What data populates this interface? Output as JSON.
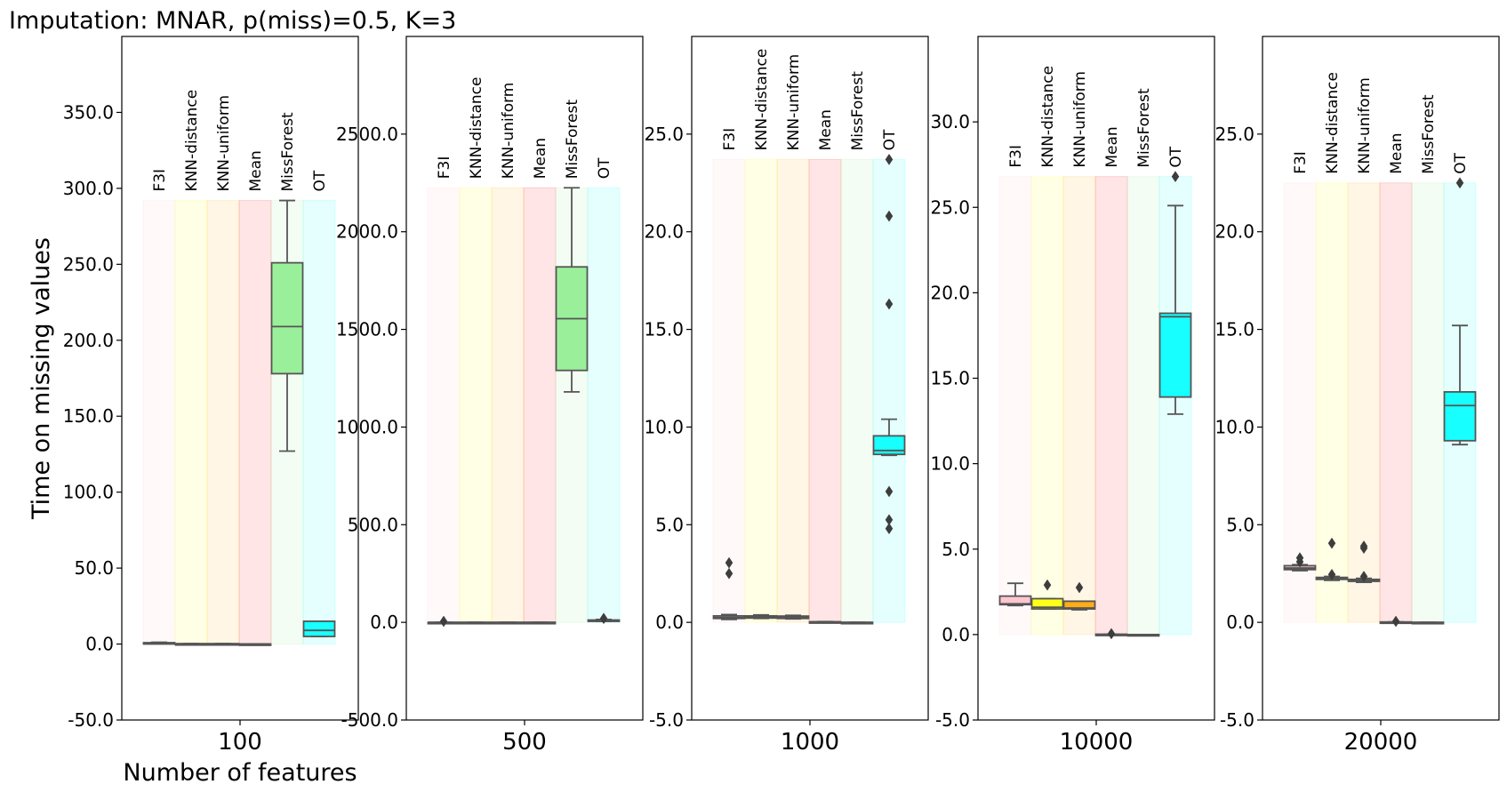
{
  "chart_data": {
    "type": "box",
    "title": "Imputation: MNAR, p(miss)=0.5, K=3",
    "xlabel": "Number of features",
    "ylabel": "Time on missing values",
    "methods": [
      "F3I",
      "KNN-distance",
      "KNN-uniform",
      "Mean",
      "MissForest",
      "OT"
    ],
    "method_colors": {
      "F3I": "#ffc0cb",
      "KNN-distance": "#ffff00",
      "KNN-uniform": "#ffa500",
      "Mean": "#ff0000",
      "MissForest": "#90ee90",
      "OT": "#00ffff"
    },
    "panels": [
      {
        "category": "100",
        "ylim": [
          -50,
          400
        ],
        "yticks": [
          -50,
          0,
          50,
          100,
          150,
          200,
          250,
          300,
          350
        ],
        "ytick_labels": [
          "-50.0",
          "0.0",
          "50.0",
          "100.0",
          "150.0",
          "200.0",
          "250.0",
          "300.0",
          "350.0"
        ],
        "band_top": 292,
        "boxes": [
          {
            "method": "F3I",
            "whislo": 0.3,
            "q1": 0.4,
            "med": 0.5,
            "q3": 0.9,
            "whishi": 1.2,
            "fliers": []
          },
          {
            "method": "KNN-distance",
            "whislo": 0.1,
            "q1": 0.15,
            "med": 0.2,
            "q3": 0.25,
            "whishi": 0.3,
            "fliers": []
          },
          {
            "method": "KNN-uniform",
            "whislo": 0.1,
            "q1": 0.15,
            "med": 0.2,
            "q3": 0.25,
            "whishi": 0.3,
            "fliers": []
          },
          {
            "method": "Mean",
            "whislo": 0.0,
            "q1": 0.0,
            "med": 0.0,
            "q3": 0.05,
            "whishi": 0.05,
            "fliers": []
          },
          {
            "method": "MissForest",
            "whislo": 127,
            "q1": 178,
            "med": 209,
            "q3": 251,
            "whishi": 292,
            "fliers": []
          },
          {
            "method": "OT",
            "whislo": 5,
            "q1": 5,
            "med": 9,
            "q3": 15,
            "whishi": 15,
            "fliers": []
          }
        ]
      },
      {
        "category": "500",
        "ylim": [
          -500,
          3000
        ],
        "yticks": [
          -500,
          0,
          500,
          1000,
          1500,
          2000,
          2500
        ],
        "ytick_labels": [
          "-500.0",
          "0.0",
          "500.0",
          "1000.0",
          "1500.0",
          "2000.0",
          "2500.0"
        ],
        "band_top": 2225,
        "boxes": [
          {
            "method": "F3I",
            "whislo": 0,
            "q1": 0,
            "med": 0,
            "q3": 0,
            "whishi": 0,
            "fliers": [
              5
            ]
          },
          {
            "method": "KNN-distance",
            "whislo": 0,
            "q1": 0,
            "med": 0,
            "q3": 0,
            "whishi": 0,
            "fliers": []
          },
          {
            "method": "KNN-uniform",
            "whislo": 0,
            "q1": 0,
            "med": 0,
            "q3": 0,
            "whishi": 0,
            "fliers": []
          },
          {
            "method": "Mean",
            "whislo": 0,
            "q1": 0,
            "med": 0,
            "q3": 0,
            "whishi": 0,
            "fliers": []
          },
          {
            "method": "MissForest",
            "whislo": 1180,
            "q1": 1290,
            "med": 1555,
            "q3": 1820,
            "whishi": 2225,
            "fliers": []
          },
          {
            "method": "OT",
            "whislo": 5,
            "q1": 5,
            "med": 8,
            "q3": 12,
            "whishi": 15,
            "fliers": [
              20
            ]
          }
        ]
      },
      {
        "category": "1000",
        "ylim": [
          -5,
          30
        ],
        "yticks": [
          -5,
          0,
          5,
          10,
          15,
          20,
          25
        ],
        "ytick_labels": [
          "-5.0",
          "0.0",
          "5.0",
          "10.0",
          "15.0",
          "20.0",
          "25.0"
        ],
        "band_top": 23.7,
        "boxes": [
          {
            "method": "F3I",
            "whislo": 0.15,
            "q1": 0.2,
            "med": 0.25,
            "q3": 0.33,
            "whishi": 0.4,
            "fliers": [
              2.5,
              3.05
            ]
          },
          {
            "method": "KNN-distance",
            "whislo": 0.2,
            "q1": 0.22,
            "med": 0.28,
            "q3": 0.33,
            "whishi": 0.38,
            "fliers": []
          },
          {
            "method": "KNN-uniform",
            "whislo": 0.18,
            "q1": 0.2,
            "med": 0.25,
            "q3": 0.32,
            "whishi": 0.36,
            "fliers": []
          },
          {
            "method": "Mean",
            "whislo": 0.0,
            "q1": 0.01,
            "med": 0.02,
            "q3": 0.03,
            "whishi": 0.04,
            "fliers": []
          },
          {
            "method": "MissForest",
            "whislo": 0,
            "q1": 0,
            "med": 0,
            "q3": 0,
            "whishi": 0,
            "fliers": []
          },
          {
            "method": "OT",
            "whislo": 8.55,
            "q1": 8.6,
            "med": 8.8,
            "q3": 9.55,
            "whishi": 10.4,
            "fliers": [
              4.8,
              5.25,
              6.7,
              16.3,
              20.8,
              23.7
            ]
          }
        ]
      },
      {
        "category": "10000",
        "ylim": [
          -5,
          35
        ],
        "yticks": [
          -5,
          0,
          5,
          10,
          15,
          20,
          25,
          30
        ],
        "ytick_labels": [
          "-5.0",
          "0.0",
          "5.0",
          "10.0",
          "15.0",
          "20.0",
          "25.0",
          "30.0"
        ],
        "band_top": 26.8,
        "boxes": [
          {
            "method": "F3I",
            "whislo": 1.7,
            "q1": 1.75,
            "med": 1.8,
            "q3": 2.25,
            "whishi": 3.0,
            "fliers": []
          },
          {
            "method": "KNN-distance",
            "whislo": 1.5,
            "q1": 1.5,
            "med": 1.6,
            "q3": 2.1,
            "whishi": 2.1,
            "fliers": [
              2.9
            ]
          },
          {
            "method": "KNN-uniform",
            "whislo": 1.45,
            "q1": 1.5,
            "med": 1.55,
            "q3": 1.95,
            "whishi": 1.95,
            "fliers": [
              2.75
            ]
          },
          {
            "method": "Mean",
            "whislo": 0.0,
            "q1": 0.0,
            "med": 0.0,
            "q3": 0.02,
            "whishi": 0.02,
            "fliers": [
              0.05
            ]
          },
          {
            "method": "MissForest",
            "whislo": 0,
            "q1": 0,
            "med": 0,
            "q3": 0,
            "whishi": 0,
            "fliers": []
          },
          {
            "method": "OT",
            "whislo": 12.9,
            "q1": 13.9,
            "med": 18.6,
            "q3": 18.8,
            "whishi": 25.1,
            "fliers": [
              26.8
            ]
          }
        ]
      },
      {
        "category": "20000",
        "ylim": [
          -5,
          30
        ],
        "yticks": [
          -5,
          0,
          5,
          10,
          15,
          20,
          25
        ],
        "ytick_labels": [
          "-5.0",
          "0.0",
          "5.0",
          "10.0",
          "15.0",
          "20.0",
          "25.0"
        ],
        "band_top": 22.5,
        "boxes": [
          {
            "method": "F3I",
            "whislo": 2.65,
            "q1": 2.7,
            "med": 2.78,
            "q3": 2.9,
            "whishi": 2.95,
            "fliers": [
              3.1,
              3.3
            ]
          },
          {
            "method": "KNN-distance",
            "whislo": 2.15,
            "q1": 2.2,
            "med": 2.25,
            "q3": 2.3,
            "whishi": 2.35,
            "fliers": [
              2.45,
              4.05
            ]
          },
          {
            "method": "KNN-uniform",
            "whislo": 2.05,
            "q1": 2.1,
            "med": 2.15,
            "q3": 2.2,
            "whishi": 2.25,
            "fliers": [
              2.35,
              3.8,
              3.9
            ]
          },
          {
            "method": "Mean",
            "whislo": 0.0,
            "q1": 0.0,
            "med": 0.01,
            "q3": 0.02,
            "whishi": 0.02,
            "fliers": [
              0.05
            ]
          },
          {
            "method": "MissForest",
            "whislo": 0,
            "q1": 0,
            "med": 0,
            "q3": 0,
            "whishi": 0,
            "fliers": []
          },
          {
            "method": "OT",
            "whislo": 9.1,
            "q1": 9.3,
            "med": 11.1,
            "q3": 11.8,
            "whishi": 15.2,
            "fliers": [
              22.5
            ]
          }
        ]
      }
    ]
  }
}
